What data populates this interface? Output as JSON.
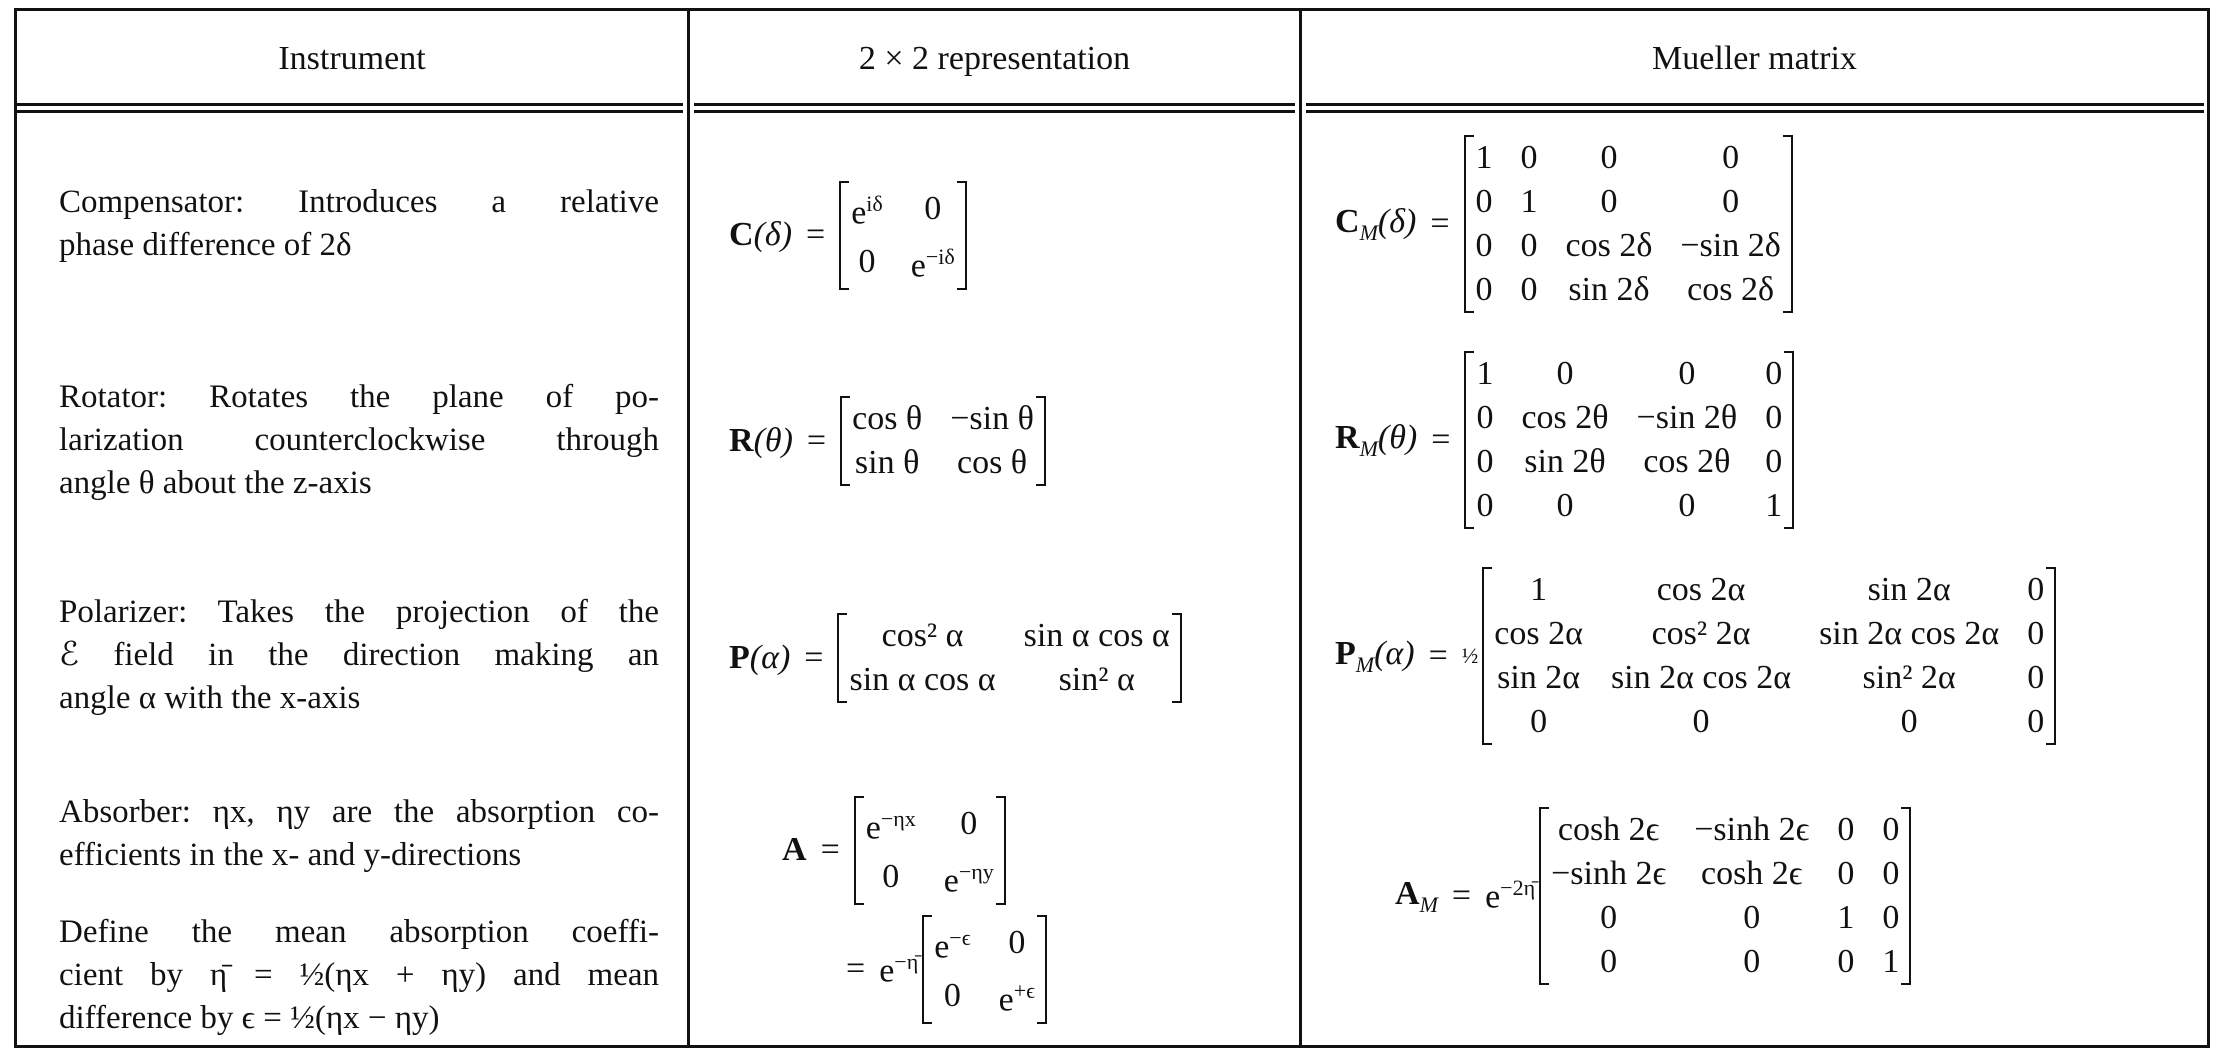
{
  "headers": {
    "instrument": "Instrument",
    "representation": "2 × 2 representation",
    "mueller": "Mueller matrix"
  },
  "rows": [
    {
      "name": "compensator",
      "description_lines": [
        "Compensator: Introduces a relative",
        "phase difference of 2δ"
      ],
      "two_by_two": {
        "lhs": "C",
        "arg": "(δ)",
        "matrix": [
          [
            "e^{iδ}",
            "0"
          ],
          [
            "0",
            "e^{−iδ}"
          ]
        ]
      },
      "mueller": {
        "lhs": "C",
        "sub": "M",
        "arg": "(δ)",
        "matrix": [
          [
            "1",
            "0",
            "0",
            "0"
          ],
          [
            "0",
            "1",
            "0",
            "0"
          ],
          [
            "0",
            "0",
            "cos 2δ",
            "−sin 2δ"
          ],
          [
            "0",
            "0",
            "sin 2δ",
            "cos 2δ"
          ]
        ]
      }
    },
    {
      "name": "rotator",
      "description_lines": [
        "Rotator: Rotates the plane of po-",
        "larization counterclockwise through",
        "angle θ about the z-axis"
      ],
      "two_by_two": {
        "lhs": "R",
        "arg": "(θ)",
        "matrix": [
          [
            "cos θ",
            "−sin θ"
          ],
          [
            "sin θ",
            "cos θ"
          ]
        ]
      },
      "mueller": {
        "lhs": "R",
        "sub": "M",
        "arg": "(θ)",
        "matrix": [
          [
            "1",
            "0",
            "0",
            "0"
          ],
          [
            "0",
            "cos 2θ",
            "−sin 2θ",
            "0"
          ],
          [
            "0",
            "sin 2θ",
            "cos 2θ",
            "0"
          ],
          [
            "0",
            "0",
            "0",
            "1"
          ]
        ]
      }
    },
    {
      "name": "polarizer",
      "description_lines": [
        "Polarizer: Takes the projection of the",
        "ℰ field in the direction making an",
        "angle α with the x-axis"
      ],
      "two_by_two": {
        "lhs": "P",
        "arg": "(α)",
        "matrix": [
          [
            "cos² α",
            "sin α cos α"
          ],
          [
            "sin α cos α",
            "sin² α"
          ]
        ]
      },
      "mueller": {
        "lhs": "P",
        "sub": "M",
        "arg": "(α)",
        "prefactor": "½",
        "matrix": [
          [
            "1",
            "cos 2α",
            "sin 2α",
            "0"
          ],
          [
            "cos 2α",
            "cos² 2α",
            "sin 2α cos 2α",
            "0"
          ],
          [
            "sin 2α",
            "sin 2α cos 2α",
            "sin² 2α",
            "0"
          ],
          [
            "0",
            "0",
            "0",
            "0"
          ]
        ]
      }
    },
    {
      "name": "absorber",
      "description_lines": [
        "Absorber: ηx, ηy are the absorption co-",
        "efficients in the x- and y-directions"
      ],
      "definition_lines": [
        "Define the mean absorption coeffi-",
        "cient by η̄ = ½(ηx + ηy) and mean",
        "difference by ϵ = ½(ηx − ηy)"
      ],
      "two_by_two": {
        "lhs": "A",
        "matrix": [
          [
            "e^{−ηx}",
            "0"
          ],
          [
            "0",
            "e^{−ηy}"
          ]
        ],
        "prefactor2": "e^{−η̄}",
        "matrix2": [
          [
            "e^{−ϵ}",
            "0"
          ],
          [
            "0",
            "e^{+ϵ}"
          ]
        ]
      },
      "mueller": {
        "lhs": "A",
        "sub": "M",
        "prefactor": "e^{−2η̄}",
        "matrix": [
          [
            "cosh 2ϵ",
            "−sinh 2ϵ",
            "0",
            "0"
          ],
          [
            "−sinh 2ϵ",
            "cosh 2ϵ",
            "0",
            "0"
          ],
          [
            "0",
            "0",
            "1",
            "0"
          ],
          [
            "0",
            "0",
            "0",
            "1"
          ]
        ]
      }
    }
  ]
}
